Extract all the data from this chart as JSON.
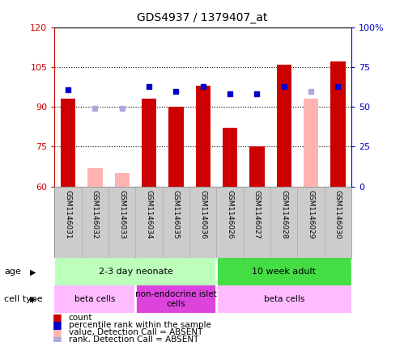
{
  "title": "GDS4937 / 1379407_at",
  "samples": [
    "GSM1146031",
    "GSM1146032",
    "GSM1146033",
    "GSM1146034",
    "GSM1146035",
    "GSM1146036",
    "GSM1146026",
    "GSM1146027",
    "GSM1146028",
    "GSM1146029",
    "GSM1146030"
  ],
  "count_values": [
    93,
    null,
    null,
    93,
    90,
    98,
    82,
    75,
    106,
    null,
    107
  ],
  "count_absent_values": [
    null,
    67,
    65,
    null,
    null,
    null,
    null,
    null,
    null,
    93,
    null
  ],
  "percentile_values": [
    61,
    null,
    null,
    63,
    60,
    63,
    58,
    58,
    63,
    null,
    63
  ],
  "percentile_absent_values": [
    null,
    49,
    49,
    null,
    null,
    null,
    null,
    null,
    null,
    60,
    null
  ],
  "ylim_left": [
    60,
    120
  ],
  "ylim_right": [
    0,
    100
  ],
  "yticks_left": [
    60,
    75,
    90,
    105,
    120
  ],
  "yticks_right": [
    0,
    25,
    50,
    75,
    100
  ],
  "bar_color_present": "#cc0000",
  "bar_color_absent": "#ffb3b3",
  "marker_color_present": "#0000cc",
  "marker_color_absent": "#aaaadd",
  "age_groups": [
    {
      "label": "2-3 day neonate",
      "start": 0,
      "end": 6,
      "color": "#bbffbb"
    },
    {
      "label": "10 week adult",
      "start": 6,
      "end": 11,
      "color": "#44dd44"
    }
  ],
  "cell_type_groups": [
    {
      "label": "beta cells",
      "start": 0,
      "end": 3,
      "color": "#ffbbff"
    },
    {
      "label": "non-endocrine islet\ncells",
      "start": 3,
      "end": 6,
      "color": "#dd44dd"
    },
    {
      "label": "beta cells",
      "start": 6,
      "end": 11,
      "color": "#ffbbff"
    }
  ],
  "legend_items": [
    {
      "color": "#cc0000",
      "label": "count"
    },
    {
      "color": "#0000cc",
      "label": "percentile rank within the sample"
    },
    {
      "color": "#ffb3b3",
      "label": "value, Detection Call = ABSENT"
    },
    {
      "color": "#aaaadd",
      "label": "rank, Detection Call = ABSENT"
    }
  ]
}
